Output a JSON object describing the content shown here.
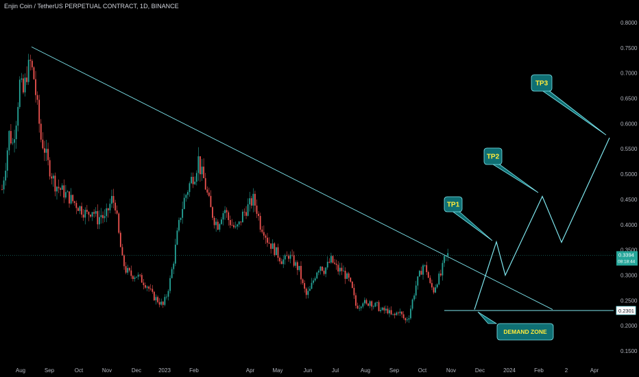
{
  "header": {
    "title": "Enjin Coin / TetherUS PERPETUAL CONTRACT, 1D, BINANCE"
  },
  "colors": {
    "background": "#000000",
    "up_candle": "#26a69a",
    "down_candle": "#ef5350",
    "drawing": "#7fe7ef",
    "price_badge": "#26a69a",
    "tp_box": "#0f6f73"
  },
  "chart_data": {
    "type": "candlestick",
    "symbol": "ENJUSDT.P",
    "timeframe": "1D",
    "ylim": [
      0.15,
      0.8
    ],
    "y_ticks": [
      "0.1500",
      "0.2000",
      "0.2500",
      "0.3000",
      "0.3500",
      "0.4000",
      "0.4500",
      "0.5000",
      "0.5500",
      "0.6000",
      "0.6500",
      "0.7000",
      "0.7500",
      "0.8000"
    ],
    "x_ticks": [
      "Aug",
      "Sep",
      "Oct",
      "Nov",
      "Dec",
      "2023",
      "Feb",
      "Apr",
      "May",
      "Jun",
      "Jul",
      "Aug",
      "Sep",
      "Oct",
      "Nov",
      "Dec",
      "2024",
      "Feb",
      "2",
      "Apr"
    ],
    "price_path": [
      [
        0,
        0.47
      ],
      [
        2,
        0.52
      ],
      [
        4,
        0.58
      ],
      [
        6,
        0.56
      ],
      [
        8,
        0.61
      ],
      [
        10,
        0.68
      ],
      [
        12,
        0.66
      ],
      [
        14,
        0.7
      ],
      [
        16,
        0.72
      ],
      [
        18,
        0.69
      ],
      [
        20,
        0.63
      ],
      [
        22,
        0.57
      ],
      [
        24,
        0.55
      ],
      [
        26,
        0.52
      ],
      [
        28,
        0.5
      ],
      [
        30,
        0.48
      ],
      [
        33,
        0.47
      ],
      [
        36,
        0.46
      ],
      [
        39,
        0.45
      ],
      [
        42,
        0.44
      ],
      [
        45,
        0.43
      ],
      [
        48,
        0.42
      ],
      [
        51,
        0.43
      ],
      [
        54,
        0.41
      ],
      [
        56,
        0.42
      ],
      [
        58,
        0.41
      ],
      [
        60,
        0.43
      ],
      [
        62,
        0.45
      ],
      [
        64,
        0.44
      ],
      [
        66,
        0.38
      ],
      [
        68,
        0.33
      ],
      [
        70,
        0.31
      ],
      [
        73,
        0.3
      ],
      [
        76,
        0.3
      ],
      [
        79,
        0.29
      ],
      [
        82,
        0.28
      ],
      [
        85,
        0.26
      ],
      [
        88,
        0.25
      ],
      [
        91,
        0.24
      ],
      [
        93,
        0.26
      ],
      [
        95,
        0.29
      ],
      [
        97,
        0.33
      ],
      [
        99,
        0.38
      ],
      [
        101,
        0.42
      ],
      [
        103,
        0.45
      ],
      [
        105,
        0.47
      ],
      [
        107,
        0.49
      ],
      [
        109,
        0.5
      ],
      [
        111,
        0.53
      ],
      [
        112,
        0.51
      ],
      [
        114,
        0.49
      ],
      [
        116,
        0.46
      ],
      [
        118,
        0.43
      ],
      [
        120,
        0.41
      ],
      [
        122,
        0.4
      ],
      [
        124,
        0.42
      ],
      [
        126,
        0.43
      ],
      [
        128,
        0.41
      ],
      [
        130,
        0.4
      ],
      [
        132,
        0.39
      ],
      [
        134,
        0.4
      ],
      [
        136,
        0.42
      ],
      [
        138,
        0.43
      ],
      [
        140,
        0.44
      ],
      [
        142,
        0.45
      ],
      [
        144,
        0.43
      ],
      [
        146,
        0.4
      ],
      [
        148,
        0.39
      ],
      [
        150,
        0.37
      ],
      [
        152,
        0.36
      ],
      [
        154,
        0.35
      ],
      [
        156,
        0.34
      ],
      [
        158,
        0.33
      ],
      [
        160,
        0.33
      ],
      [
        162,
        0.34
      ],
      [
        164,
        0.33
      ],
      [
        166,
        0.32
      ],
      [
        168,
        0.31
      ],
      [
        170,
        0.28
      ],
      [
        172,
        0.26
      ],
      [
        174,
        0.27
      ],
      [
        176,
        0.29
      ],
      [
        178,
        0.31
      ],
      [
        180,
        0.32
      ],
      [
        182,
        0.31
      ],
      [
        184,
        0.32
      ],
      [
        186,
        0.33
      ],
      [
        188,
        0.32
      ],
      [
        190,
        0.31
      ],
      [
        192,
        0.31
      ],
      [
        194,
        0.3
      ],
      [
        196,
        0.29
      ],
      [
        198,
        0.27
      ],
      [
        200,
        0.24
      ],
      [
        202,
        0.24
      ],
      [
        204,
        0.25
      ],
      [
        206,
        0.24
      ],
      [
        208,
        0.25
      ],
      [
        210,
        0.24
      ],
      [
        212,
        0.24
      ],
      [
        214,
        0.23
      ],
      [
        216,
        0.23
      ],
      [
        218,
        0.23
      ],
      [
        220,
        0.22
      ],
      [
        222,
        0.22
      ],
      [
        224,
        0.23
      ],
      [
        226,
        0.22
      ],
      [
        228,
        0.21
      ],
      [
        230,
        0.22
      ],
      [
        232,
        0.25
      ],
      [
        234,
        0.28
      ],
      [
        236,
        0.3
      ],
      [
        238,
        0.32
      ],
      [
        240,
        0.31
      ],
      [
        242,
        0.28
      ],
      [
        244,
        0.27
      ],
      [
        246,
        0.29
      ],
      [
        248,
        0.3
      ],
      [
        250,
        0.33
      ],
      [
        252,
        0.34
      ]
    ],
    "trendline": {
      "from": [
        "Aug 2022 high",
        0.752
      ],
      "to": [
        "Feb 2024",
        0.232
      ]
    },
    "demand_zone_level": 0.2301,
    "projection": [
      {
        "date": "Dec 2023",
        "price": 0.232
      },
      {
        "date": "Dec 2023",
        "price": 0.366
      },
      {
        "date": "Dec 2023",
        "price": 0.3
      },
      {
        "date": "Feb 2024",
        "price": 0.456
      },
      {
        "date": "2",
        "price": 0.365
      },
      {
        "date": "Apr 2024",
        "price": 0.572
      }
    ],
    "last_price": "0.3394",
    "countdown": "08:18:44",
    "level_label": "0.2301",
    "annotations": [
      "TP1",
      "TP2",
      "TP3",
      "DEMAND ZONE"
    ]
  }
}
